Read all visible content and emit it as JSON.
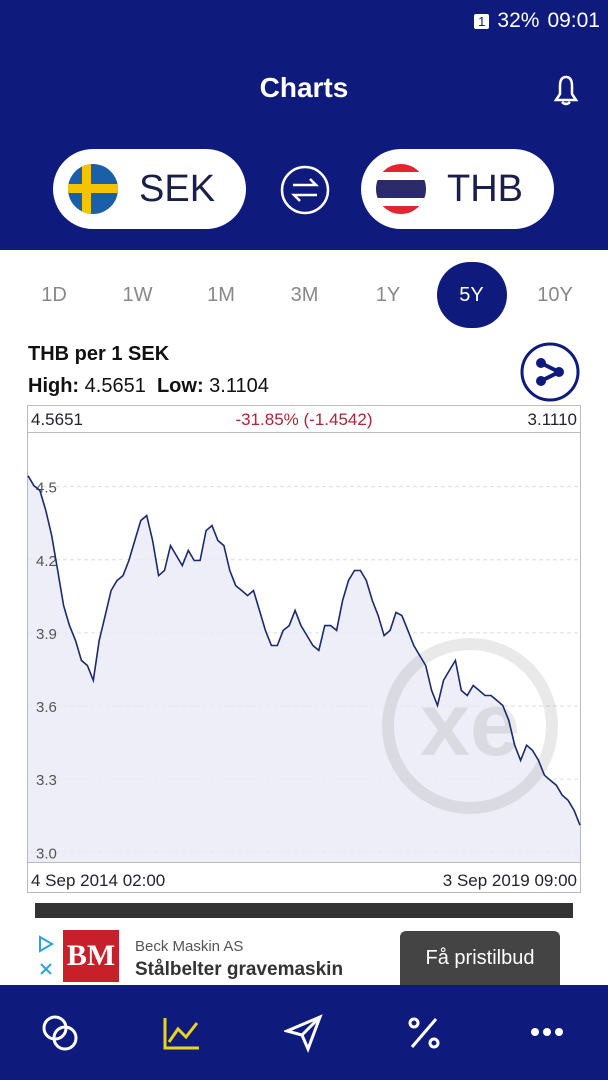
{
  "status_bar": {
    "sim": "1",
    "battery": "32%",
    "time": "09:01"
  },
  "header": {
    "title": "Charts"
  },
  "currency_from": "SEK",
  "currency_to": "THB",
  "ranges": [
    "1D",
    "1W",
    "1M",
    "3M",
    "1Y",
    "5Y",
    "10Y"
  ],
  "selected_range_index": 5,
  "chart_info": {
    "title": "THB per 1 SEK",
    "high_label": "High:",
    "high": "4.5651",
    "low_label": "Low:",
    "low": "3.1104"
  },
  "chart_data": {
    "type": "line",
    "start_value": "4.5651",
    "change": "-31.85% (-1.4542)",
    "end_value": "3.1110",
    "x_start_label": "4 Sep 2014 02:00",
    "x_end_label": "3 Sep 2019 09:00",
    "color": "#1a2a6c",
    "values": [
      4.545,
      4.504,
      4.484,
      4.402,
      4.299,
      4.156,
      4.012,
      3.93,
      3.869,
      3.787,
      3.766,
      3.705,
      3.869,
      3.971,
      4.074,
      4.115,
      4.135,
      4.197,
      4.279,
      4.361,
      4.381,
      4.279,
      4.135,
      4.156,
      4.258,
      4.217,
      4.176,
      4.238,
      4.197,
      4.197,
      4.32,
      4.34,
      4.279,
      4.258,
      4.156,
      4.094,
      4.074,
      4.053,
      4.074,
      3.992,
      3.91,
      3.848,
      3.848,
      3.91,
      3.93,
      3.992,
      3.93,
      3.889,
      3.848,
      3.828,
      3.93,
      3.93,
      3.91,
      4.033,
      4.115,
      4.156,
      4.156,
      4.115,
      4.033,
      3.971,
      3.889,
      3.91,
      3.984,
      3.971,
      3.91,
      3.848,
      3.807,
      3.766,
      3.664,
      3.602,
      3.705,
      3.746,
      3.787,
      3.664,
      3.643,
      3.684,
      3.664,
      3.643,
      3.643,
      3.623,
      3.602,
      3.541,
      3.439,
      3.377,
      3.439,
      3.418,
      3.377,
      3.316,
      3.295,
      3.275,
      3.234,
      3.213,
      3.172,
      3.111
    ],
    "ylim": [
      2.96,
      4.72
    ],
    "yticks": [
      {
        "value": 3.0,
        "label": "3.0"
      },
      3.3,
      3.6,
      3.9,
      4.2,
      4.5
    ],
    "grid": true
  },
  "ad": {
    "logo": "BM",
    "advertiser": "Beck Maskin AS",
    "headline": "Stålbelter gravemaskin",
    "button": "Få pristilbud"
  }
}
